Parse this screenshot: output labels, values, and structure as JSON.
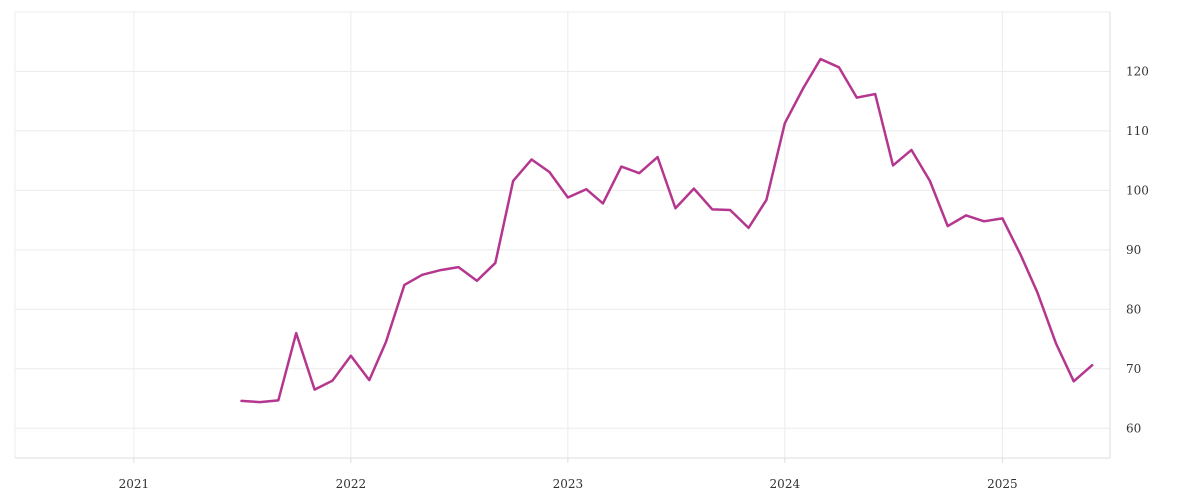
{
  "chart_data": {
    "type": "line",
    "title": "",
    "xlabel": "",
    "ylabel": "",
    "x_ticks": [
      "2021",
      "2022",
      "2023",
      "2024",
      "2025"
    ],
    "y_ticks": [
      60,
      70,
      80,
      90,
      100,
      110,
      120
    ],
    "xlim": [
      "2020-06-15",
      "2025-07-01"
    ],
    "ylim": [
      55,
      130
    ],
    "grid": true,
    "legend": "none",
    "y_axis_position": "right",
    "series": [
      {
        "color": "#b5368e",
        "points": [
          [
            "2021-07-01",
            64.6
          ],
          [
            "2021-08-01",
            64.4
          ],
          [
            "2021-09-01",
            64.7
          ],
          [
            "2021-10-01",
            76.0
          ],
          [
            "2021-11-01",
            66.5
          ],
          [
            "2021-12-01",
            68.0
          ],
          [
            "2022-01-01",
            72.2
          ],
          [
            "2022-02-01",
            68.1
          ],
          [
            "2022-03-01",
            74.5
          ],
          [
            "2022-04-01",
            84.1
          ],
          [
            "2022-05-01",
            85.8
          ],
          [
            "2022-06-01",
            86.6
          ],
          [
            "2022-07-01",
            87.1
          ],
          [
            "2022-08-01",
            84.8
          ],
          [
            "2022-09-01",
            87.8
          ],
          [
            "2022-10-01",
            101.6
          ],
          [
            "2022-11-01",
            105.2
          ],
          [
            "2022-12-01",
            103.1
          ],
          [
            "2023-01-01",
            98.8
          ],
          [
            "2023-02-01",
            100.2
          ],
          [
            "2023-03-01",
            97.8
          ],
          [
            "2023-04-01",
            104.0
          ],
          [
            "2023-05-01",
            102.9
          ],
          [
            "2023-06-01",
            105.6
          ],
          [
            "2023-07-01",
            97.0
          ],
          [
            "2023-08-01",
            100.3
          ],
          [
            "2023-09-01",
            96.8
          ],
          [
            "2023-10-01",
            96.7
          ],
          [
            "2023-11-01",
            93.7
          ],
          [
            "2023-12-01",
            98.4
          ],
          [
            "2024-01-01",
            111.3
          ],
          [
            "2024-02-01",
            117.2
          ],
          [
            "2024-03-01",
            122.1
          ],
          [
            "2024-04-01",
            120.7
          ],
          [
            "2024-05-01",
            115.6
          ],
          [
            "2024-06-01",
            116.2
          ],
          [
            "2024-07-01",
            104.2
          ],
          [
            "2024-08-01",
            106.8
          ],
          [
            "2024-09-01",
            101.6
          ],
          [
            "2024-10-01",
            94.0
          ],
          [
            "2024-11-01",
            95.8
          ],
          [
            "2024-12-01",
            94.8
          ],
          [
            "2025-01-01",
            95.3
          ],
          [
            "2025-02-01",
            89.1
          ],
          [
            "2025-03-01",
            82.8
          ],
          [
            "2025-04-01",
            74.3
          ],
          [
            "2025-05-01",
            67.9
          ],
          [
            "2025-06-01",
            70.6
          ]
        ]
      }
    ]
  }
}
